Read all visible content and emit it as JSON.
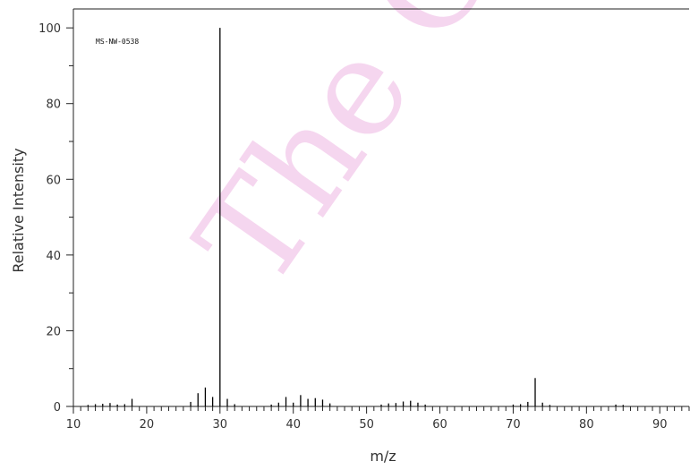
{
  "chart_data": {
    "type": "bar",
    "code_label": "MS-NW-0538",
    "watermark": "The Ch",
    "xlabel": "m/z",
    "ylabel": "Relative Intensity",
    "xlim": [
      10,
      94
    ],
    "ylim": [
      0,
      105
    ],
    "x_ticks": [
      10,
      20,
      30,
      40,
      50,
      60,
      70,
      80,
      90
    ],
    "y_ticks": [
      0,
      20,
      40,
      60,
      80,
      100
    ],
    "grid": false,
    "peak_color": "#000000",
    "axis_color": "#222222",
    "watermark_color": "#cc22aa",
    "peaks": [
      {
        "mz": 12,
        "intensity": 0.4
      },
      {
        "mz": 13,
        "intensity": 0.6
      },
      {
        "mz": 14,
        "intensity": 0.7
      },
      {
        "mz": 15,
        "intensity": 0.9
      },
      {
        "mz": 16,
        "intensity": 0.5
      },
      {
        "mz": 17,
        "intensity": 0.6
      },
      {
        "mz": 18,
        "intensity": 2.0
      },
      {
        "mz": 26,
        "intensity": 1.2
      },
      {
        "mz": 27,
        "intensity": 3.5
      },
      {
        "mz": 28,
        "intensity": 5.0
      },
      {
        "mz": 29,
        "intensity": 2.5
      },
      {
        "mz": 30,
        "intensity": 100
      },
      {
        "mz": 31,
        "intensity": 2.0
      },
      {
        "mz": 32,
        "intensity": 0.6
      },
      {
        "mz": 37,
        "intensity": 0.5
      },
      {
        "mz": 38,
        "intensity": 1.0
      },
      {
        "mz": 39,
        "intensity": 2.5
      },
      {
        "mz": 40,
        "intensity": 1.0
      },
      {
        "mz": 41,
        "intensity": 3.0
      },
      {
        "mz": 42,
        "intensity": 2.0
      },
      {
        "mz": 43,
        "intensity": 2.2
      },
      {
        "mz": 44,
        "intensity": 1.8
      },
      {
        "mz": 45,
        "intensity": 0.8
      },
      {
        "mz": 52,
        "intensity": 0.5
      },
      {
        "mz": 53,
        "intensity": 0.8
      },
      {
        "mz": 54,
        "intensity": 0.9
      },
      {
        "mz": 55,
        "intensity": 1.3
      },
      {
        "mz": 56,
        "intensity": 1.5
      },
      {
        "mz": 57,
        "intensity": 1.0
      },
      {
        "mz": 58,
        "intensity": 0.5
      },
      {
        "mz": 70,
        "intensity": 0.5
      },
      {
        "mz": 71,
        "intensity": 0.6
      },
      {
        "mz": 72,
        "intensity": 1.2
      },
      {
        "mz": 73,
        "intensity": 7.5
      },
      {
        "mz": 74,
        "intensity": 1.0
      },
      {
        "mz": 75,
        "intensity": 0.4
      },
      {
        "mz": 84,
        "intensity": 0.5
      },
      {
        "mz": 85,
        "intensity": 0.4
      }
    ]
  }
}
